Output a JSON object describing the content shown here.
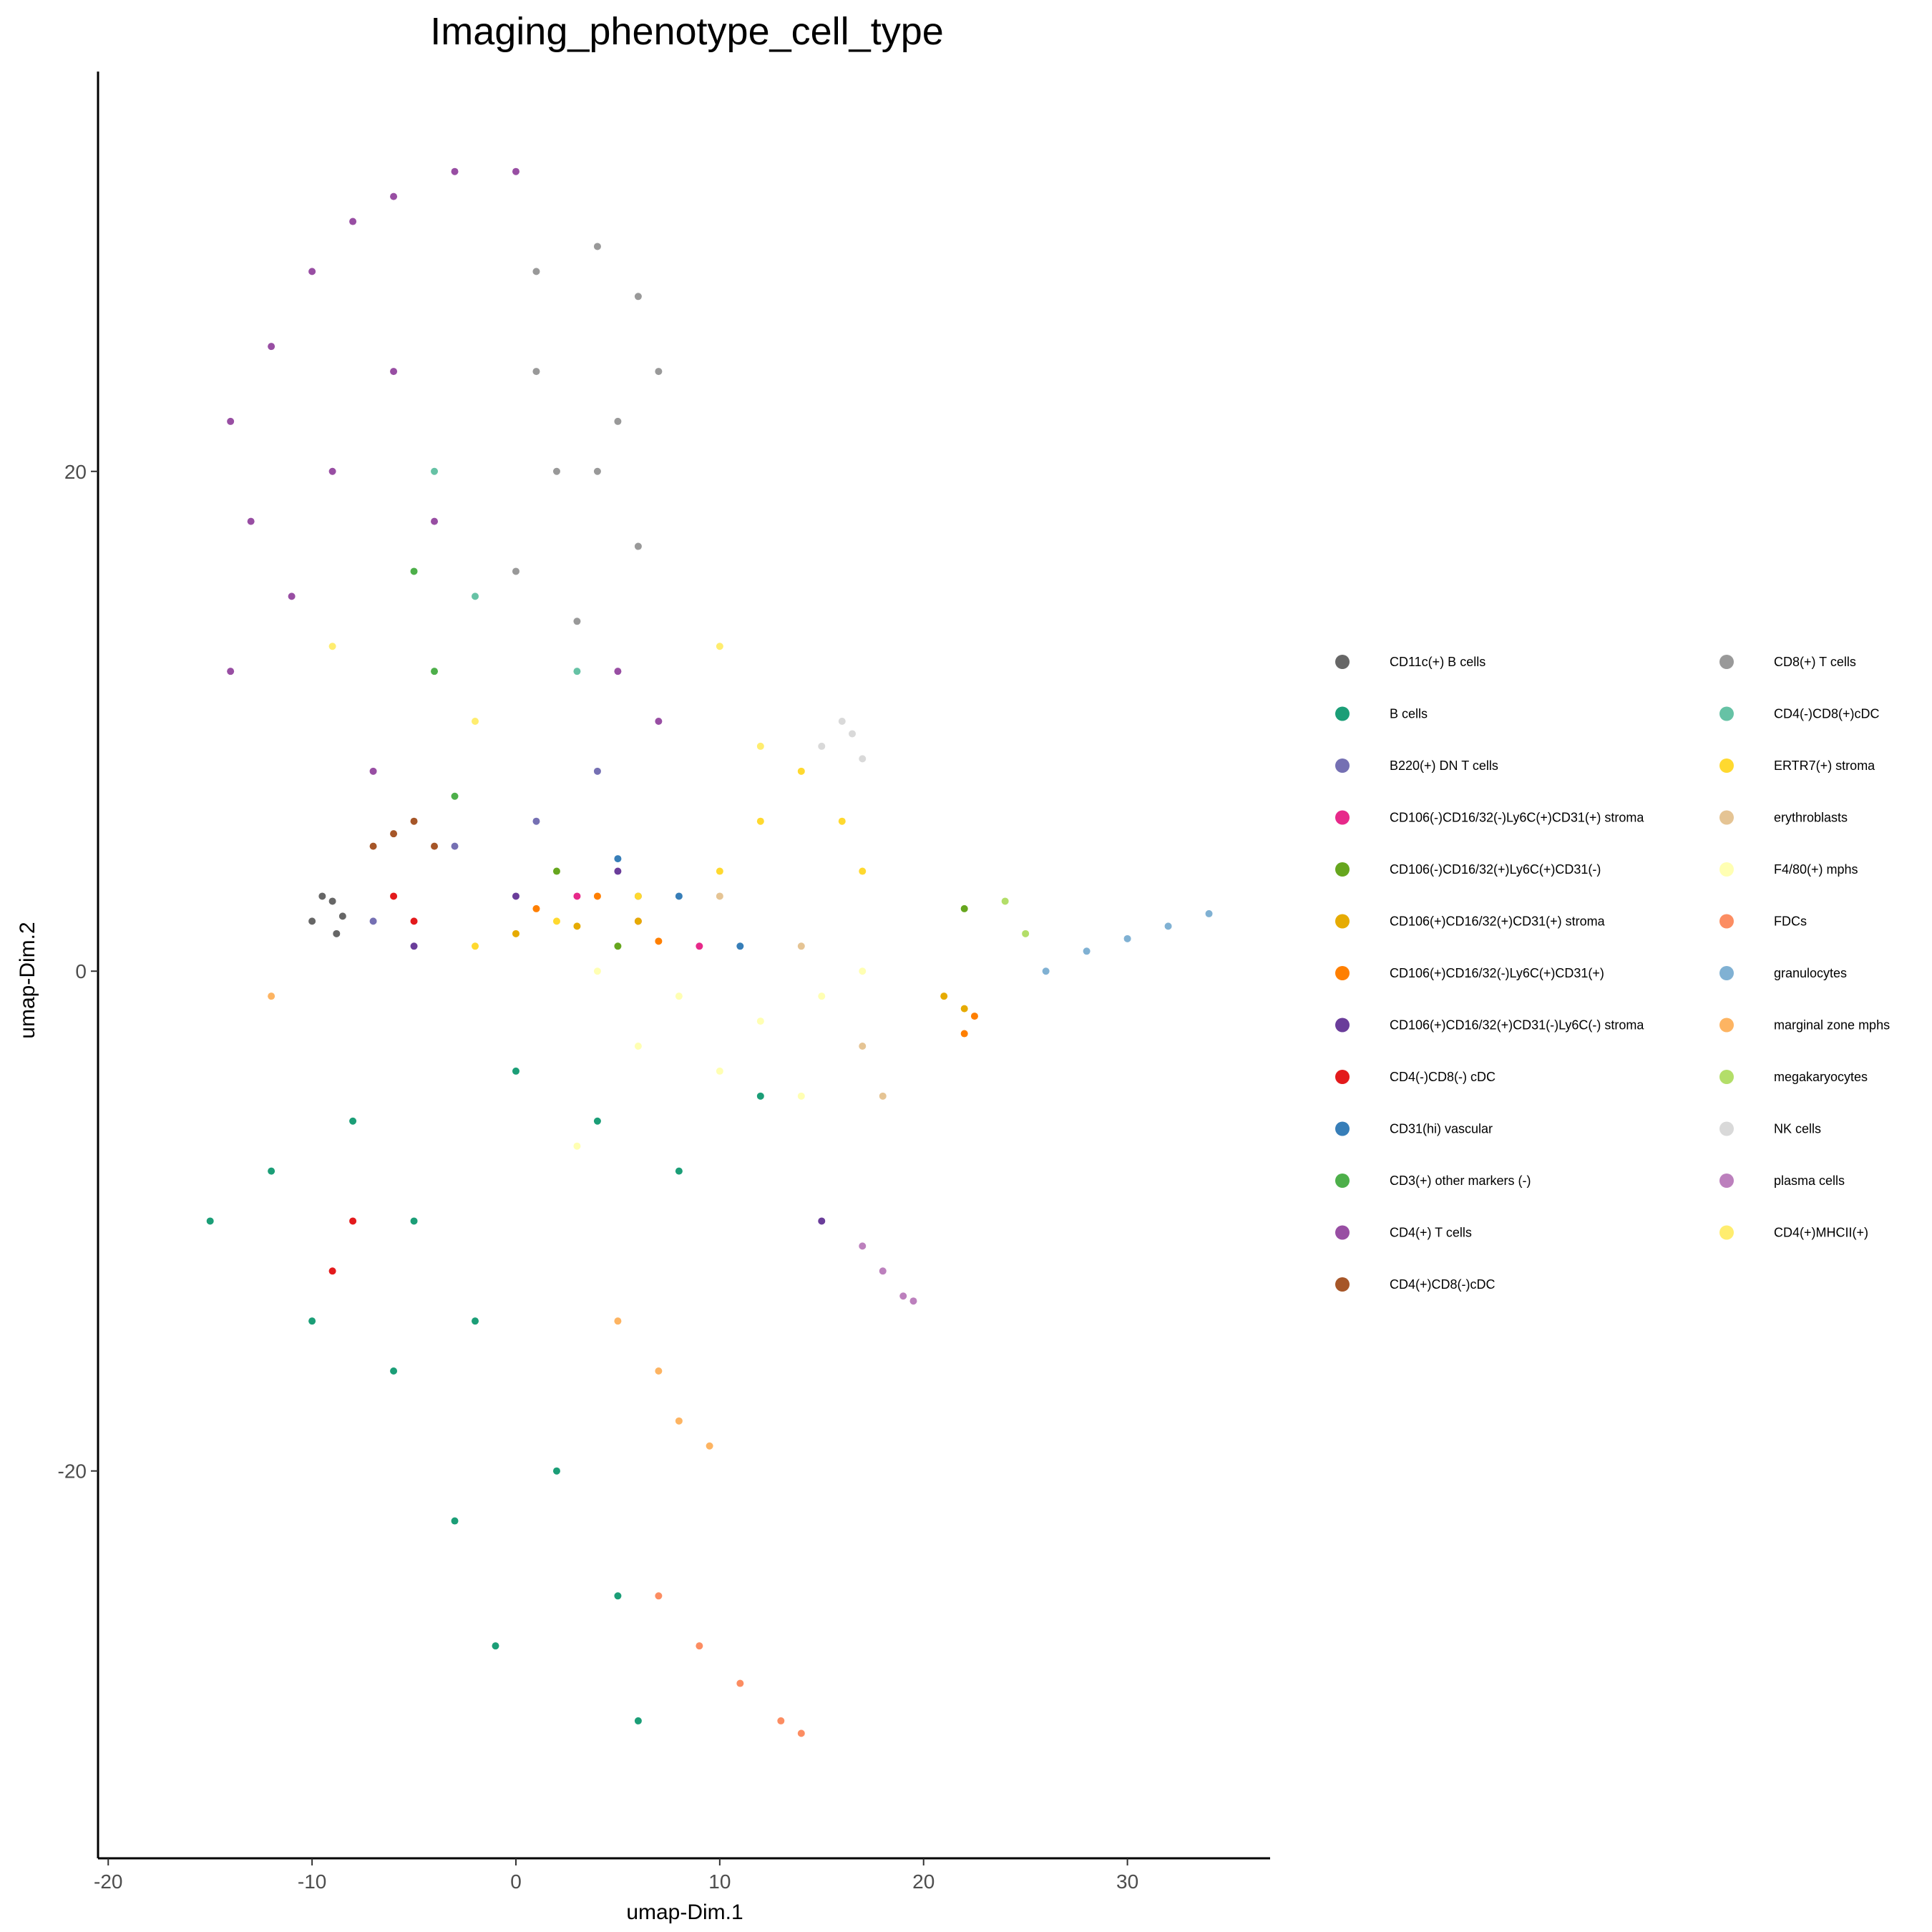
{
  "chart_data": {
    "type": "scatter",
    "title": "Imaging_phenotype_cell_type",
    "xlabel": "umap-Dim.1",
    "ylabel": "umap-Dim.2",
    "xlim": [
      -20.5,
      37
    ],
    "ylim": [
      -35.5,
      36
    ],
    "xticks": [
      -20,
      -10,
      0,
      10,
      20,
      30
    ],
    "xtick_labels": [
      "-20",
      "-10",
      "0",
      "10",
      "20",
      "30"
    ],
    "yticks": [
      -20,
      0,
      20
    ],
    "ytick_labels": [
      "-20",
      "0",
      "20"
    ],
    "grid": false,
    "legend_position": "right",
    "legend_columns": 2,
    "series": [
      {
        "name": "CD11c(+) B cells",
        "color": "#666666",
        "points": [
          [
            -10,
            2
          ],
          [
            -9.5,
            3
          ],
          [
            -8.8,
            1.5
          ],
          [
            -9,
            2.8
          ],
          [
            -8.5,
            2.2
          ]
        ]
      },
      {
        "name": "B cells",
        "color": "#1b9e77",
        "points": [
          [
            -12,
            -8
          ],
          [
            -8,
            -6
          ],
          [
            -5,
            -10
          ],
          [
            -2,
            -14
          ],
          [
            2,
            -20
          ],
          [
            5,
            -25
          ],
          [
            -3,
            -22
          ],
          [
            -6,
            -16
          ],
          [
            0,
            -4
          ],
          [
            4,
            -6
          ],
          [
            8,
            -8
          ],
          [
            12,
            -5
          ],
          [
            -15,
            -10
          ],
          [
            -10,
            -14
          ],
          [
            -1,
            -27
          ],
          [
            6,
            -30
          ]
        ]
      },
      {
        "name": "B220(+) DN T cells",
        "color": "#7570b3",
        "points": [
          [
            -3,
            5
          ],
          [
            1,
            6
          ],
          [
            4,
            8
          ],
          [
            -7,
            2
          ],
          [
            6,
            3
          ]
        ]
      },
      {
        "name": "CD106(-)CD16/32(-)Ly6C(+)CD31(+) stroma",
        "color": "#e7298a",
        "points": [
          [
            3,
            3
          ],
          [
            6,
            2
          ],
          [
            9,
            1
          ]
        ]
      },
      {
        "name": "CD106(-)CD16/32(+)Ly6C(+)CD31(-)",
        "color": "#66a61e",
        "points": [
          [
            2,
            4
          ],
          [
            5,
            1
          ],
          [
            22,
            2.5
          ]
        ]
      },
      {
        "name": "CD106(+)CD16/32(+)CD31(+) stroma",
        "color": "#e6ab02",
        "points": [
          [
            0,
            1.5
          ],
          [
            3,
            1.8
          ],
          [
            6,
            2
          ],
          [
            21,
            -1
          ],
          [
            22,
            -1.5
          ]
        ]
      },
      {
        "name": "CD106(+)CD16/32(-)Ly6C(+)CD31(+)",
        "color": "#ff7f00",
        "points": [
          [
            1,
            2.5
          ],
          [
            4,
            3
          ],
          [
            7,
            1.2
          ],
          [
            22,
            -2.5
          ],
          [
            22.5,
            -1.8
          ]
        ]
      },
      {
        "name": "CD106(+)CD16/32(+)CD31(-)Ly6C(-) stroma",
        "color": "#6a3d9a",
        "points": [
          [
            -5,
            1
          ],
          [
            0,
            3
          ],
          [
            5,
            4
          ],
          [
            15,
            -10
          ]
        ]
      },
      {
        "name": "CD4(-)CD8(-) cDC",
        "color": "#e31a1c",
        "points": [
          [
            -6,
            3
          ],
          [
            -5,
            2
          ],
          [
            -8,
            -10
          ],
          [
            -9,
            -12
          ]
        ]
      },
      {
        "name": "CD31(hi) vascular",
        "color": "#377eb8",
        "points": [
          [
            5,
            4.5
          ],
          [
            8,
            3
          ],
          [
            11,
            1
          ]
        ]
      },
      {
        "name": "CD3(+) other markers (-)",
        "color": "#4daf4a",
        "points": [
          [
            -5,
            16
          ],
          [
            -4,
            12
          ],
          [
            -3,
            7
          ]
        ]
      },
      {
        "name": "CD4(+) T cells",
        "color": "#984ea3",
        "points": [
          [
            -14,
            22
          ],
          [
            -12,
            25
          ],
          [
            -10,
            28
          ],
          [
            -8,
            30
          ],
          [
            -6,
            31
          ],
          [
            -3,
            32
          ],
          [
            0,
            32
          ],
          [
            -13,
            18
          ],
          [
            -11,
            15
          ],
          [
            -14,
            12
          ],
          [
            -9,
            20
          ],
          [
            -6,
            24
          ],
          [
            -4,
            18
          ],
          [
            5,
            12
          ],
          [
            7,
            10
          ],
          [
            -7,
            8
          ]
        ]
      },
      {
        "name": "CD4(+)CD8(-)cDC",
        "color": "#a65628",
        "points": [
          [
            -6,
            5.5
          ],
          [
            -5,
            6
          ],
          [
            -7,
            5
          ],
          [
            -4,
            5
          ]
        ]
      },
      {
        "name": "CD8(+) T cells",
        "color": "#999999",
        "points": [
          [
            1,
            28
          ],
          [
            4,
            29
          ],
          [
            6,
            27
          ],
          [
            7,
            24
          ],
          [
            5,
            22
          ],
          [
            2,
            20
          ],
          [
            0,
            16
          ],
          [
            3,
            14
          ],
          [
            6,
            17
          ],
          [
            1,
            24
          ],
          [
            4,
            20
          ]
        ]
      },
      {
        "name": "CD4(-)CD8(+)cDC",
        "color": "#66c2a5",
        "points": [
          [
            -4,
            20
          ],
          [
            -2,
            15
          ],
          [
            3,
            12
          ]
        ]
      },
      {
        "name": "ERTR7(+) stroma",
        "color": "#ffd92f",
        "points": [
          [
            12,
            6
          ],
          [
            14,
            8
          ],
          [
            16,
            6
          ],
          [
            17,
            4
          ],
          [
            10,
            4
          ],
          [
            -2,
            1
          ],
          [
            2,
            2
          ],
          [
            6,
            3
          ]
        ]
      },
      {
        "name": "erythroblasts",
        "color": "#e5c494",
        "points": [
          [
            10,
            3
          ],
          [
            14,
            1
          ],
          [
            17,
            -3
          ],
          [
            18,
            -5
          ]
        ]
      },
      {
        "name": "F4/80(+) mphs",
        "color": "#ffffb3",
        "points": [
          [
            4,
            0
          ],
          [
            8,
            -1
          ],
          [
            12,
            -2
          ],
          [
            15,
            -1
          ],
          [
            17,
            0
          ],
          [
            10,
            -4
          ],
          [
            6,
            -3
          ],
          [
            14,
            -5
          ],
          [
            3,
            -7
          ]
        ]
      },
      {
        "name": "FDCs",
        "color": "#fc8d62",
        "points": [
          [
            7,
            -25
          ],
          [
            9,
            -27
          ],
          [
            11,
            -28.5
          ],
          [
            13,
            -30
          ],
          [
            14,
            -30.5
          ]
        ]
      },
      {
        "name": "granulocytes",
        "color": "#80b1d3",
        "points": [
          [
            26,
            0
          ],
          [
            28,
            0.8
          ],
          [
            30,
            1.3
          ],
          [
            32,
            1.8
          ],
          [
            34,
            2.3
          ]
        ]
      },
      {
        "name": "marginal zone mphs",
        "color": "#fdb462",
        "points": [
          [
            5,
            -14
          ],
          [
            7,
            -16
          ],
          [
            8,
            -18
          ],
          [
            9.5,
            -19
          ],
          [
            -12,
            -1
          ]
        ]
      },
      {
        "name": "megakaryocytes",
        "color": "#b3de69",
        "points": [
          [
            24,
            2.8
          ],
          [
            25,
            1.5
          ]
        ]
      },
      {
        "name": "NK cells",
        "color": "#d9d9d9",
        "points": [
          [
            15,
            9
          ],
          [
            16,
            10
          ],
          [
            17,
            8.5
          ],
          [
            16.5,
            9.5
          ]
        ]
      },
      {
        "name": "plasma cells",
        "color": "#bc80bd",
        "points": [
          [
            17,
            -11
          ],
          [
            18,
            -12
          ],
          [
            19,
            -13
          ],
          [
            19.5,
            -13.2
          ]
        ]
      },
      {
        "name": "CD4(+)MHCII(+)",
        "color": "#ffed6f",
        "points": [
          [
            -9,
            13
          ],
          [
            -2,
            10
          ],
          [
            10,
            13
          ],
          [
            12,
            9
          ]
        ]
      }
    ]
  }
}
